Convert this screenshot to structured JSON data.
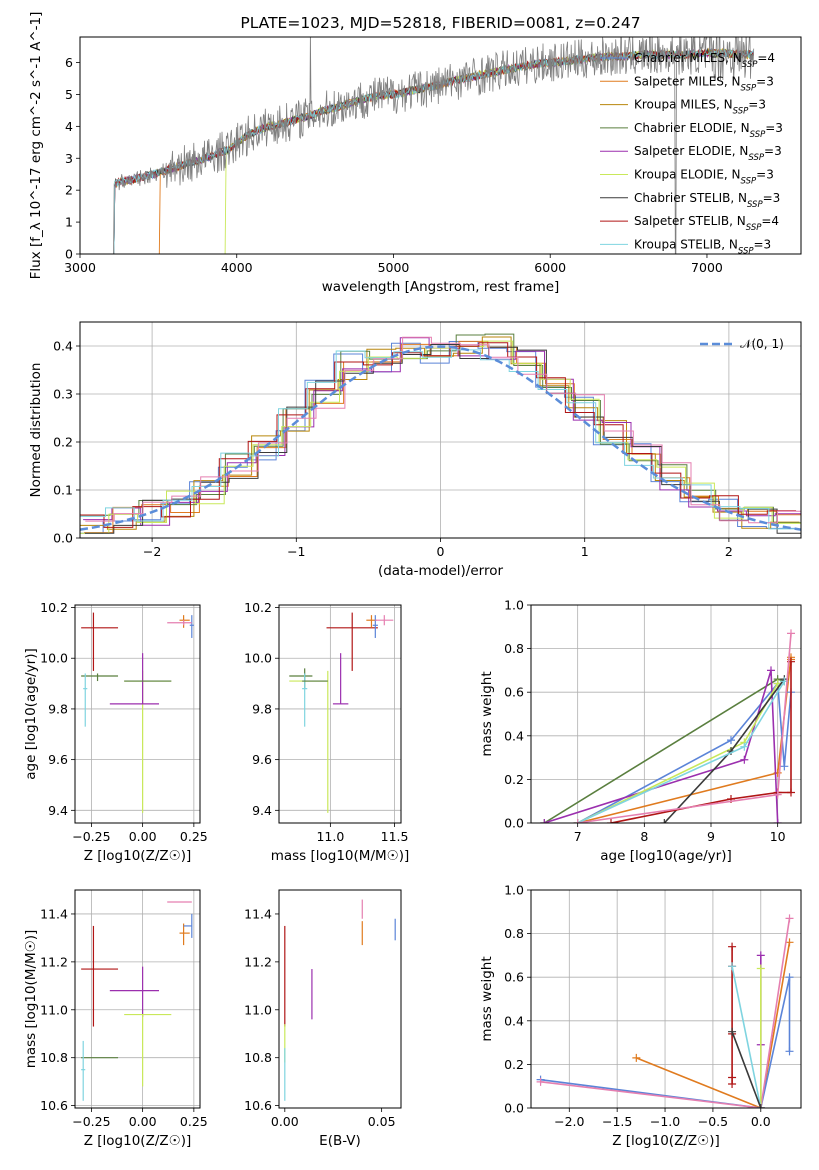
{
  "colors": {
    "chabrier_miles": "#5b84d8",
    "salpeter_miles": "#e07b1f",
    "kroupa_miles": "#b8860b",
    "chabrier_elodie": "#5a7f3f",
    "salpeter_elodie": "#9b2fae",
    "kroupa_elodie": "#c9e85a",
    "chabrier_stelib": "#3a3a3a",
    "salpeter_stelib": "#b01515",
    "kroupa_stelib": "#7fd4e0",
    "pink": "#e57fb0",
    "data_gray": "#7f7f7f",
    "gauss": "#5b8dd9"
  },
  "chart_data": [
    {
      "id": "spectrum",
      "type": "line",
      "title": "PLATE=1023, MJD=52818, FIBERID=0081, z=0.247",
      "xlabel": "wavelength [Angstrom, rest frame]",
      "ylabel": "Flux [f_λ 10^-17 erg cm^-2 s^-1 A^-1]",
      "xlim": [
        3000,
        7600
      ],
      "ylim": [
        0,
        6.8
      ],
      "xticks": [
        "3000",
        "4000",
        "5000",
        "6000",
        "7000"
      ],
      "yticks": [
        "0",
        "1",
        "2",
        "3",
        "4",
        "5",
        "6"
      ],
      "grid": false,
      "legend_position": "top-right",
      "legend": [
        "Chabrier MILES, N_SSP=4",
        "Salpeter MILES, N_SSP=3",
        "Kroupa MILES, N_SSP=3",
        "Chabrier ELODIE, N_SSP=3",
        "Salpeter ELODIE, N_SSP=3",
        "Kroupa ELODIE, N_SSP=3",
        "Chabrier STELIB, N_SSP=3",
        "Salpeter STELIB, N_SSP=4",
        "Kroupa STELIB, N_SSP=3"
      ],
      "continuum": {
        "x": [
          3210,
          3300,
          3400,
          3500,
          3600,
          3700,
          3800,
          3900,
          3950,
          4000,
          4100,
          4200,
          4300,
          4400,
          4500,
          4600,
          4700,
          4800,
          4900,
          5000,
          5100,
          5200,
          5300,
          5400,
          5500,
          5600,
          5700,
          5800,
          5900,
          6000,
          6100,
          6200,
          6300,
          6400,
          6500,
          6600,
          6700,
          6800,
          6900,
          7000,
          7100,
          7200,
          7300
        ],
        "y": [
          2.2,
          2.3,
          2.4,
          2.55,
          2.7,
          2.85,
          3.0,
          3.2,
          3.25,
          3.5,
          3.8,
          4.0,
          4.1,
          4.25,
          4.4,
          4.55,
          4.7,
          4.85,
          4.95,
          5.0,
          5.1,
          5.2,
          5.3,
          5.45,
          5.55,
          5.65,
          5.75,
          5.85,
          5.95,
          6.0,
          6.05,
          6.1,
          6.15,
          6.2,
          6.2,
          6.25,
          6.25,
          6.25,
          6.25,
          6.3,
          6.3,
          6.25,
          6.25
        ]
      }
    },
    {
      "id": "residuals",
      "type": "step",
      "xlabel": "(data-model)/error",
      "ylabel": "Normed distribution",
      "xlim": [
        -2.5,
        2.5
      ],
      "ylim": [
        0,
        0.45
      ],
      "xticks": [
        "−2",
        "−1",
        "0",
        "1",
        "2"
      ],
      "yticks": [
        "0.0",
        "0.1",
        "0.2",
        "0.3",
        "0.4"
      ],
      "grid": true,
      "legend_position": "top-right",
      "legend": [
        "𝒩(0, 1)"
      ],
      "bin_edges": [
        -2.5,
        -2.3,
        -2.1,
        -1.9,
        -1.7,
        -1.5,
        -1.3,
        -1.1,
        -0.9,
        -0.7,
        -0.5,
        -0.3,
        -0.1,
        0.1,
        0.3,
        0.5,
        0.7,
        0.9,
        1.1,
        1.3,
        1.5,
        1.7,
        1.9,
        2.1,
        2.3,
        2.5
      ],
      "histogram_base": [
        0.025,
        0.04,
        0.055,
        0.07,
        0.1,
        0.15,
        0.19,
        0.25,
        0.3,
        0.36,
        0.37,
        0.39,
        0.39,
        0.4,
        0.4,
        0.37,
        0.33,
        0.27,
        0.22,
        0.17,
        0.13,
        0.09,
        0.06,
        0.04,
        0.03
      ]
    },
    {
      "id": "age-vs-Z",
      "type": "errorbar",
      "xlabel": "Z [log10(Z/Z☉)]",
      "ylabel": "age  [log10(age/yr)]",
      "xlim": [
        -0.33,
        0.28
      ],
      "ylim": [
        9.35,
        10.21
      ],
      "xticks": [
        "−0.25",
        "0.00",
        "0.25"
      ],
      "yticks": [
        "9.4",
        "9.6",
        "9.8",
        "10.0",
        "10.2"
      ],
      "grid": true,
      "points": [
        {
          "series": "salpeter_stelib",
          "x": -0.24,
          "xerr": [
            0.06,
            0.12
          ],
          "y": 10.12,
          "yerr": [
            0.17,
            0.06
          ]
        },
        {
          "series": "chabrier_elodie",
          "x": -0.22,
          "xerr": [
            0.08,
            0.1
          ],
          "y": 9.93,
          "yerr": [
            0.02,
            0.01
          ]
        },
        {
          "series": "kroupa_stelib",
          "x": -0.28,
          "xerr": [
            0.01,
            0.01
          ],
          "y": 9.88,
          "yerr": [
            0.15,
            0.06
          ]
        },
        {
          "series": "kroupa_elodie",
          "x": 0.0,
          "xerr": [
            0.09,
            0.14
          ],
          "y": 9.91,
          "yerr": [
            0.52,
            0.04
          ]
        },
        {
          "series": "salpeter_elodie",
          "x": 0.0,
          "xerr": [
            0.16,
            0.08
          ],
          "y": 9.82,
          "yerr": [
            0.0,
            0.2
          ]
        },
        {
          "series": "chabrier_elodie",
          "x": 0.0,
          "xerr": [
            0.09,
            0.14
          ],
          "y": 9.91,
          "yerr": [
            0.0,
            0.0
          ]
        },
        {
          "series": "salpeter_miles",
          "x": 0.2,
          "xerr": [
            0.02,
            0.03
          ],
          "y": 10.15,
          "yerr": [
            0.03,
            0.02
          ]
        },
        {
          "series": "chabrier_miles",
          "x": 0.24,
          "xerr": [
            0.01,
            0.01
          ],
          "y": 10.13,
          "yerr": [
            0.05,
            0.04
          ]
        },
        {
          "series": "pink",
          "x": 0.2,
          "xerr": [
            0.08,
            0.04
          ],
          "y": 10.14,
          "yerr": [
            0.01,
            0.01
          ]
        }
      ]
    },
    {
      "id": "age-vs-mass",
      "type": "errorbar",
      "xlabel": "mass [log10(M/M☉)]",
      "ylabel": "",
      "xlim": [
        10.6,
        11.55
      ],
      "ylim": [
        9.35,
        10.21
      ],
      "xticks": [
        "11.0",
        "11.5"
      ],
      "yticks": [
        "9.4",
        "9.6",
        "9.8",
        "10.0",
        "10.2"
      ],
      "grid": true,
      "points": [
        {
          "series": "salpeter_stelib",
          "x": 11.17,
          "xerr": [
            0.2,
            0.2
          ],
          "y": 10.12,
          "yerr": [
            0.17,
            0.06
          ]
        },
        {
          "series": "chabrier_elodie",
          "x": 10.8,
          "xerr": [
            0.12,
            0.06
          ],
          "y": 9.93,
          "yerr": [
            0.05,
            0.03
          ]
        },
        {
          "series": "kroupa_stelib",
          "x": 10.8,
          "xerr": [
            0.02,
            0.02
          ],
          "y": 9.88,
          "yerr": [
            0.15,
            0.06
          ]
        },
        {
          "series": "kroupa_elodie",
          "x": 10.98,
          "xerr": [
            0.3,
            0.0
          ],
          "y": 9.91,
          "yerr": [
            0.52,
            0.04
          ]
        },
        {
          "series": "chabrier_elodie",
          "x": 10.98,
          "xerr": [
            0.2,
            0.0
          ],
          "y": 9.91,
          "yerr": [
            0.0,
            0.0
          ]
        },
        {
          "series": "salpeter_elodie",
          "x": 11.08,
          "xerr": [
            0.06,
            0.06
          ],
          "y": 9.82,
          "yerr": [
            0.0,
            0.2
          ]
        },
        {
          "series": "salpeter_miles",
          "x": 11.32,
          "xerr": [
            0.04,
            0.04
          ],
          "y": 10.15,
          "yerr": [
            0.03,
            0.02
          ]
        },
        {
          "series": "chabrier_miles",
          "x": 11.35,
          "xerr": [
            0.02,
            0.02
          ],
          "y": 10.13,
          "yerr": [
            0.05,
            0.04
          ]
        },
        {
          "series": "pink",
          "x": 11.42,
          "xerr": [
            0.07,
            0.07
          ],
          "y": 10.15,
          "yerr": [
            0.02,
            0.02
          ]
        }
      ]
    },
    {
      "id": "mass-weight-vs-age",
      "type": "line",
      "xlabel": "age  [log10(age/yr)]",
      "ylabel": "mass weight",
      "xlim": [
        6.3,
        10.35
      ],
      "ylim": [
        0,
        1.0
      ],
      "xticks": [
        "7",
        "8",
        "9",
        "10"
      ],
      "yticks": [
        "0.0",
        "0.2",
        "0.4",
        "0.6",
        "0.8",
        "1.0"
      ],
      "grid": true,
      "series": [
        {
          "name": "salpeter_miles",
          "x": [
            7.0,
            10.0,
            10.2,
            10.2
          ],
          "y": [
            0.0,
            0.23,
            0.76,
            0.75
          ]
        },
        {
          "name": "chabrier_miles",
          "x": [
            7.0,
            9.3,
            10.0,
            10.1,
            10.2
          ],
          "y": [
            0.0,
            0.38,
            0.64,
            0.26,
            0.6
          ]
        },
        {
          "name": "chabrier_elodie",
          "x": [
            6.5,
            10.0,
            10.1
          ],
          "y": [
            0.0,
            0.66,
            0.65
          ]
        },
        {
          "name": "salpeter_elodie",
          "x": [
            6.5,
            9.5,
            9.9,
            10.0
          ],
          "y": [
            0.0,
            0.29,
            0.7,
            0.0
          ]
        },
        {
          "name": "kroupa_elodie",
          "x": [
            7.0,
            9.5,
            10.0
          ],
          "y": [
            0.0,
            0.37,
            0.64
          ]
        },
        {
          "name": "chabrier_stelib",
          "x": [
            8.3,
            9.3,
            10.1
          ],
          "y": [
            0.0,
            0.33,
            0.66
          ]
        },
        {
          "name": "salpeter_stelib",
          "x": [
            7.5,
            9.3,
            10.0,
            10.2,
            10.2
          ],
          "y": [
            0.0,
            0.11,
            0.14,
            0.14,
            0.74
          ]
        },
        {
          "name": "kroupa_stelib",
          "x": [
            7.0,
            9.5,
            10.1
          ],
          "y": [
            0.0,
            0.35,
            0.65
          ]
        },
        {
          "name": "pink",
          "x": [
            7.0,
            10.0,
            10.2
          ],
          "y": [
            0.0,
            0.13,
            0.87
          ]
        }
      ]
    },
    {
      "id": "mass-vs-Z",
      "type": "errorbar",
      "xlabel": "Z [log10(Z/Z☉)]",
      "ylabel": "mass [log10(M/M☉)]",
      "xlim": [
        -0.33,
        0.28
      ],
      "ylim": [
        10.59,
        11.5
      ],
      "xticks": [
        "−0.25",
        "0.00",
        "0.25"
      ],
      "yticks": [
        "10.6",
        "10.8",
        "11.0",
        "11.2",
        "11.4"
      ],
      "grid": true,
      "points": [
        {
          "series": "salpeter_stelib",
          "x": -0.24,
          "xerr": [
            0.06,
            0.12
          ],
          "y": 11.17,
          "yerr": [
            0.24,
            0.18
          ]
        },
        {
          "series": "chabrier_elodie",
          "x": -0.22,
          "xerr": [
            0.08,
            0.1
          ],
          "y": 10.8,
          "yerr": [
            0.0,
            0.0
          ]
        },
        {
          "series": "kroupa_stelib",
          "x": -0.29,
          "xerr": [
            0.01,
            0.01
          ],
          "y": 10.75,
          "yerr": [
            0.13,
            0.12
          ]
        },
        {
          "series": "salpeter_elodie",
          "x": 0.0,
          "xerr": [
            0.16,
            0.08
          ],
          "y": 11.08,
          "yerr": [
            0.11,
            0.1
          ]
        },
        {
          "series": "kroupa_elodie",
          "x": 0.0,
          "xerr": [
            0.09,
            0.14
          ],
          "y": 10.98,
          "yerr": [
            0.3,
            0.0
          ]
        },
        {
          "series": "salpeter_miles",
          "x": 0.2,
          "xerr": [
            0.02,
            0.03
          ],
          "y": 11.32,
          "yerr": [
            0.05,
            0.04
          ]
        },
        {
          "series": "chabrier_miles",
          "x": 0.24,
          "xerr": [
            0.04,
            0.0
          ],
          "y": 11.35,
          "yerr": [
            0.05,
            0.05
          ]
        },
        {
          "series": "pink",
          "x": 0.2,
          "xerr": [
            0.08,
            0.04
          ],
          "y": 11.45,
          "yerr": [
            0.0,
            0.0
          ]
        }
      ]
    },
    {
      "id": "mass-vs-EBV",
      "type": "errorbar",
      "xlabel": "E(B-V)",
      "ylabel": "",
      "xlim": [
        -0.003,
        0.06
      ],
      "ylim": [
        10.59,
        11.5
      ],
      "xticks": [
        "0.00",
        "0.05"
      ],
      "yticks": [
        "10.6",
        "10.8",
        "11.0",
        "11.2",
        "11.4"
      ],
      "grid": false,
      "points": [
        {
          "series": "salpeter_stelib",
          "x": 0.0,
          "y": 11.17,
          "yerr": [
            0.24,
            0.18
          ]
        },
        {
          "series": "kroupa_elodie",
          "x": 0.0,
          "y": 10.9,
          "yerr": [
            0.12,
            0.04
          ]
        },
        {
          "series": "kroupa_stelib",
          "x": 0.0,
          "y": 10.72,
          "yerr": [
            0.1,
            0.12
          ]
        },
        {
          "series": "salpeter_elodie",
          "x": 0.014,
          "y": 11.07,
          "yerr": [
            0.11,
            0.1
          ]
        },
        {
          "series": "salpeter_miles",
          "x": 0.04,
          "y": 11.32,
          "yerr": [
            0.05,
            0.05
          ]
        },
        {
          "series": "pink",
          "x": 0.04,
          "y": 11.42,
          "yerr": [
            0.04,
            0.04
          ]
        },
        {
          "series": "chabrier_miles",
          "x": 0.057,
          "y": 11.34,
          "yerr": [
            0.05,
            0.04
          ]
        }
      ]
    },
    {
      "id": "mass-weight-vs-Z",
      "type": "line",
      "xlabel": "Z [log10(Z/Z☉)]",
      "ylabel": "mass weight",
      "xlim": [
        -2.4,
        0.42
      ],
      "ylim": [
        0,
        1.0
      ],
      "xticks": [
        "−2.0",
        "−1.5",
        "−1.0",
        "−0.5",
        "0.0"
      ],
      "yticks": [
        "0.0",
        "0.2",
        "0.4",
        "0.6",
        "0.8",
        "1.0"
      ],
      "grid": true,
      "series": [
        {
          "name": "salpeter_miles",
          "x": [
            -1.3,
            0.0,
            0.3
          ],
          "y": [
            0.23,
            0.0,
            0.76
          ]
        },
        {
          "name": "chabrier_miles",
          "x": [
            -2.3,
            0.0,
            0.3,
            0.3
          ],
          "y": [
            0.13,
            0.0,
            0.6,
            0.26
          ]
        },
        {
          "name": "pink",
          "x": [
            -2.3,
            0.0,
            0.3
          ],
          "y": [
            0.12,
            0.0,
            0.87
          ]
        },
        {
          "name": "salpeter_stelib",
          "x": [
            -0.3,
            -0.3,
            -0.3,
            -0.3,
            -0.3
          ],
          "y": [
            0.74,
            0.65,
            0.34,
            0.14,
            0.11
          ]
        },
        {
          "name": "salpeter_elodie",
          "x": [
            0.0,
            0.0,
            0.0
          ],
          "y": [
            0.7,
            0.29,
            0.0
          ]
        },
        {
          "name": "kroupa_elodie",
          "x": [
            0.0,
            0.0
          ],
          "y": [
            0.64,
            0.0
          ]
        },
        {
          "name": "kroupa_stelib",
          "x": [
            -0.3,
            0.0
          ],
          "y": [
            0.65,
            0.0
          ]
        },
        {
          "name": "chabrier_stelib",
          "x": [
            -0.3,
            0.0
          ],
          "y": [
            0.35,
            0.0
          ]
        }
      ]
    }
  ]
}
